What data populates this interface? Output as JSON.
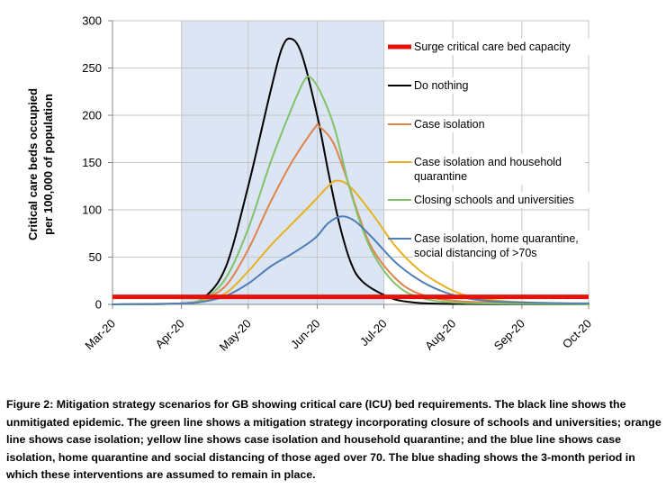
{
  "chart_data": {
    "type": "line",
    "title": "",
    "ylabel": [
      "Critical care beds occupied",
      "per 100,000 of population"
    ],
    "xlabel": "",
    "ylim": [
      0,
      300
    ],
    "yticks": [
      0,
      50,
      100,
      150,
      200,
      250,
      300
    ],
    "xlim": [
      "2020-03-01",
      "2020-10-01"
    ],
    "xticks": [
      {
        "label": "Mar-20",
        "date": "2020-03-01"
      },
      {
        "label": "Apr-20",
        "date": "2020-04-01"
      },
      {
        "label": "May-20",
        "date": "2020-05-01"
      },
      {
        "label": "Jun-20",
        "date": "2020-06-01"
      },
      {
        "label": "Jul-20",
        "date": "2020-07-01"
      },
      {
        "label": "Aug-20",
        "date": "2020-08-01"
      },
      {
        "label": "Sep-20",
        "date": "2020-09-01"
      },
      {
        "label": "Oct-20",
        "date": "2020-10-01"
      }
    ],
    "shaded_period": {
      "start": "2020-04-01",
      "end": "2020-07-01",
      "color": "#dbe5f4"
    },
    "gridlines": "horizontal",
    "capacity_line": {
      "name": "Surge critical care bed capacity",
      "value": 8,
      "color": "#e3120b"
    },
    "series": [
      {
        "name": "Do nothing",
        "color": "#000000",
        "points": [
          [
            "2020-03-01",
            0
          ],
          [
            "2020-04-01",
            1
          ],
          [
            "2020-04-11",
            7
          ],
          [
            "2020-04-21",
            40
          ],
          [
            "2020-05-01",
            125
          ],
          [
            "2020-05-11",
            225
          ],
          [
            "2020-05-16",
            270
          ],
          [
            "2020-05-20",
            281
          ],
          [
            "2020-05-25",
            265
          ],
          [
            "2020-06-01",
            200
          ],
          [
            "2020-06-06",
            140
          ],
          [
            "2020-06-11",
            85
          ],
          [
            "2020-06-16",
            45
          ],
          [
            "2020-06-21",
            25
          ],
          [
            "2020-07-01",
            10
          ],
          [
            "2020-07-11",
            3
          ],
          [
            "2020-08-01",
            0.5
          ],
          [
            "2020-10-01",
            0
          ]
        ]
      },
      {
        "name": "Case isolation",
        "color": "#e0834a",
        "points": [
          [
            "2020-03-01",
            0
          ],
          [
            "2020-04-01",
            1
          ],
          [
            "2020-04-11",
            6
          ],
          [
            "2020-04-21",
            20
          ],
          [
            "2020-05-01",
            58
          ],
          [
            "2020-05-11",
            108
          ],
          [
            "2020-05-21",
            152
          ],
          [
            "2020-05-31",
            187
          ],
          [
            "2020-06-02",
            188
          ],
          [
            "2020-06-08",
            172
          ],
          [
            "2020-06-14",
            135
          ],
          [
            "2020-06-20",
            92
          ],
          [
            "2020-06-26",
            58
          ],
          [
            "2020-07-06",
            28
          ],
          [
            "2020-07-16",
            12
          ],
          [
            "2020-08-01",
            4
          ],
          [
            "2020-09-01",
            1
          ],
          [
            "2020-10-01",
            0.5
          ]
        ]
      },
      {
        "name": "Case isolation and household quarantine",
        "color": "#e8b121",
        "points": [
          [
            "2020-03-01",
            0
          ],
          [
            "2020-04-01",
            1
          ],
          [
            "2020-04-11",
            4
          ],
          [
            "2020-04-21",
            12
          ],
          [
            "2020-05-01",
            35
          ],
          [
            "2020-05-11",
            62
          ],
          [
            "2020-05-21",
            86
          ],
          [
            "2020-05-31",
            110
          ],
          [
            "2020-06-06",
            125
          ],
          [
            "2020-06-10",
            131
          ],
          [
            "2020-06-16",
            124
          ],
          [
            "2020-06-26",
            95
          ],
          [
            "2020-07-06",
            62
          ],
          [
            "2020-07-16",
            38
          ],
          [
            "2020-07-26",
            22
          ],
          [
            "2020-08-06",
            10
          ],
          [
            "2020-08-21",
            4
          ],
          [
            "2020-09-11",
            1.5
          ],
          [
            "2020-10-01",
            1
          ]
        ]
      },
      {
        "name": "Closing schools and universities",
        "color": "#82c26b",
        "points": [
          [
            "2020-03-01",
            0
          ],
          [
            "2020-04-01",
            1
          ],
          [
            "2020-04-11",
            6
          ],
          [
            "2020-04-21",
            28
          ],
          [
            "2020-05-01",
            80
          ],
          [
            "2020-05-11",
            150
          ],
          [
            "2020-05-21",
            210
          ],
          [
            "2020-05-26",
            236
          ],
          [
            "2020-05-29",
            240
          ],
          [
            "2020-06-03",
            222
          ],
          [
            "2020-06-09",
            185
          ],
          [
            "2020-06-15",
            128
          ],
          [
            "2020-06-21",
            82
          ],
          [
            "2020-06-27",
            50
          ],
          [
            "2020-07-06",
            22
          ],
          [
            "2020-07-16",
            8
          ],
          [
            "2020-08-01",
            2
          ],
          [
            "2020-09-01",
            0.5
          ],
          [
            "2020-10-01",
            0
          ]
        ]
      },
      {
        "name": "Case isolation, home quarantine, social distancing of >70s",
        "color": "#4f7eb6",
        "points": [
          [
            "2020-03-01",
            0
          ],
          [
            "2020-04-01",
            1
          ],
          [
            "2020-04-11",
            3
          ],
          [
            "2020-04-21",
            9
          ],
          [
            "2020-05-01",
            22
          ],
          [
            "2020-05-11",
            40
          ],
          [
            "2020-05-21",
            54
          ],
          [
            "2020-05-31",
            70
          ],
          [
            "2020-06-06",
            86
          ],
          [
            "2020-06-12",
            93
          ],
          [
            "2020-06-18",
            88
          ],
          [
            "2020-06-26",
            70
          ],
          [
            "2020-07-06",
            45
          ],
          [
            "2020-07-16",
            27
          ],
          [
            "2020-07-26",
            15
          ],
          [
            "2020-08-06",
            7
          ],
          [
            "2020-08-21",
            3
          ],
          [
            "2020-09-11",
            1.5
          ],
          [
            "2020-10-01",
            1
          ]
        ]
      }
    ],
    "legend": {
      "placement": "right inside plot",
      "entries": [
        {
          "lines": [
            "Surge critical care bed capacity"
          ],
          "color": "#e3120b",
          "thick": true
        },
        {
          "lines": [
            "Do nothing"
          ],
          "color": "#000000",
          "thick": false
        },
        {
          "lines": [
            "Case isolation"
          ],
          "color": "#e0834a",
          "thick": false
        },
        {
          "lines": [
            "Case isolation and household",
            "quarantine"
          ],
          "color": "#e8b121",
          "thick": false
        },
        {
          "lines": [
            "Closing schools and universities"
          ],
          "color": "#82c26b",
          "thick": false
        },
        {
          "lines": [
            "Case isolation, home quarantine,",
            "social distancing of >70s"
          ],
          "color": "#4f7eb6",
          "thick": false
        }
      ]
    }
  },
  "caption": "Figure 2: Mitigation strategy scenarios for GB showing critical care (ICU) bed requirements. The black line shows the unmitigated epidemic. The green line shows a mitigation strategy incorporating closure of schools and universities; orange line shows case isolation; yellow line shows case isolation and household quarantine; and the blue line shows case isolation, home quarantine and social distancing of those aged over 70. The blue shading shows the 3-month period in which these interventions are assumed to remain in place."
}
